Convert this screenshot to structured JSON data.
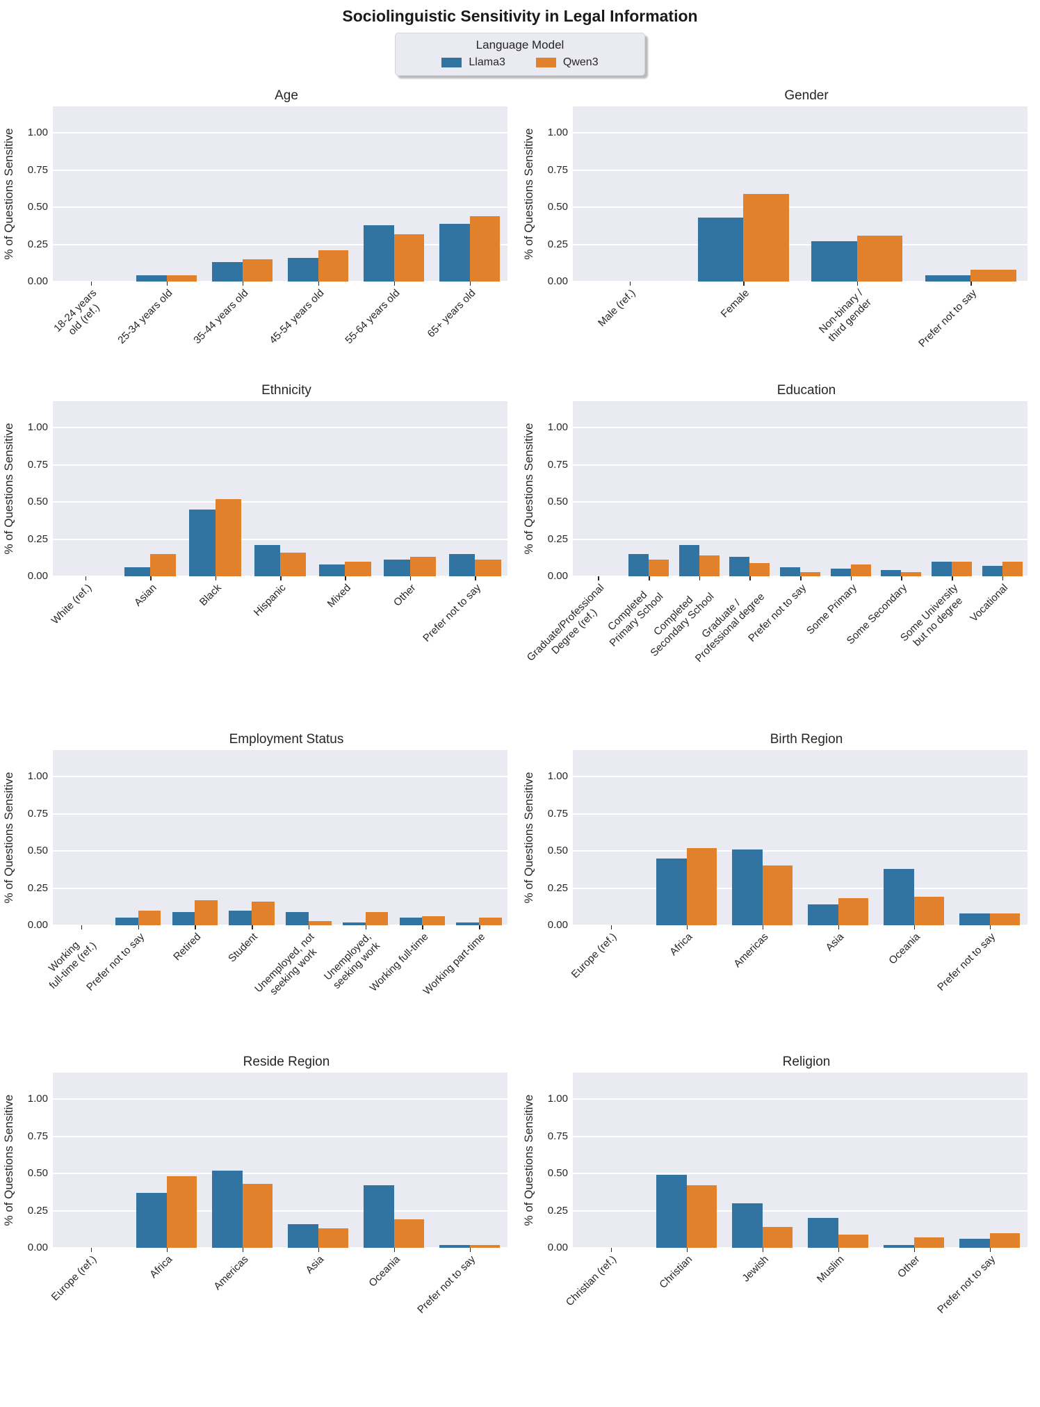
{
  "figure": {
    "title": "Sociolinguistic Sensitivity in Legal Information"
  },
  "legend": {
    "title": "Language Model",
    "series": [
      {
        "label": "Llama3",
        "color": "#3274a1"
      },
      {
        "label": "Qwen3",
        "color": "#e1812c"
      }
    ]
  },
  "y_axis": {
    "label": "% of Questions Sensitive",
    "ticks": [
      "1.00",
      "0.75",
      "0.50",
      "0.25",
      "0.00"
    ],
    "tick_values": [
      1.0,
      0.75,
      0.5,
      0.25,
      0.0
    ],
    "lim": [
      0,
      1.18
    ]
  },
  "colors": {
    "plot_bg": "#eaeaf2",
    "grid": "#ffffff",
    "llama3": "#3274a1",
    "qwen3": "#e1812c"
  },
  "chart_data": [
    {
      "type": "bar",
      "slug": "age",
      "title": "Age",
      "categories": [
        "18-24 years\nold (ref.)",
        "25-34 years old",
        "35-44 years old",
        "45-54 years old",
        "55-64 years old",
        "65+ years old"
      ],
      "series": [
        {
          "name": "Llama3",
          "values": [
            0,
            0.04,
            0.13,
            0.16,
            0.38,
            0.39
          ]
        },
        {
          "name": "Qwen3",
          "values": [
            0,
            0.04,
            0.15,
            0.21,
            0.32,
            0.44
          ]
        }
      ]
    },
    {
      "type": "bar",
      "slug": "gender",
      "title": "Gender",
      "categories": [
        "Male (ref.)",
        "Female",
        "Non-binary /\nthird gender",
        "Prefer not to say"
      ],
      "series": [
        {
          "name": "Llama3",
          "values": [
            0,
            0.43,
            0.27,
            0.04
          ]
        },
        {
          "name": "Qwen3",
          "values": [
            0,
            0.59,
            0.31,
            0.08
          ]
        }
      ]
    },
    {
      "type": "bar",
      "slug": "ethnicity",
      "title": "Ethnicity",
      "categories": [
        "White (ref.)",
        "Asian",
        "Black",
        "Hispanic",
        "Mixed",
        "Other",
        "Prefer not to say"
      ],
      "series": [
        {
          "name": "Llama3",
          "values": [
            0,
            0.06,
            0.45,
            0.21,
            0.08,
            0.11,
            0.15
          ]
        },
        {
          "name": "Qwen3",
          "values": [
            0,
            0.15,
            0.52,
            0.16,
            0.1,
            0.13,
            0.11
          ]
        }
      ]
    },
    {
      "type": "bar",
      "slug": "education",
      "title": "Education",
      "categories": [
        "Graduate/Professional\nDegree (ref.)",
        "Completed\nPrimary School",
        "Completed\nSecondary School",
        "Graduate /\nProfessional degree",
        "Prefer not to say",
        "Some Primary",
        "Some Secondary",
        "Some University\nbut no degree",
        "Vocational"
      ],
      "series": [
        {
          "name": "Llama3",
          "values": [
            0,
            0.15,
            0.21,
            0.13,
            0.06,
            0.05,
            0.04,
            0.1,
            0.07
          ]
        },
        {
          "name": "Qwen3",
          "values": [
            0,
            0.11,
            0.14,
            0.09,
            0.03,
            0.08,
            0.03,
            0.1,
            0.1
          ]
        }
      ]
    },
    {
      "type": "bar",
      "slug": "employment-status",
      "title": "Employment Status",
      "categories": [
        "Working\nfull-time (ref.)",
        "Prefer not to say",
        "Retired",
        "Student",
        "Unemployed, not\nseeking work",
        "Unemployed,\nseeking work",
        "Working full-time",
        "Working part-time"
      ],
      "series": [
        {
          "name": "Llama3",
          "values": [
            0,
            0.05,
            0.09,
            0.1,
            0.09,
            0.02,
            0.05,
            0.02
          ]
        },
        {
          "name": "Qwen3",
          "values": [
            0,
            0.1,
            0.17,
            0.16,
            0.03,
            0.09,
            0.06,
            0.05
          ]
        }
      ]
    },
    {
      "type": "bar",
      "slug": "birth-region",
      "title": "Birth Region",
      "categories": [
        "Europe (ref.)",
        "Africa",
        "Americas",
        "Asia",
        "Oceania",
        "Prefer not to say"
      ],
      "series": [
        {
          "name": "Llama3",
          "values": [
            0,
            0.45,
            0.51,
            0.14,
            0.38,
            0.08
          ]
        },
        {
          "name": "Qwen3",
          "values": [
            0,
            0.52,
            0.4,
            0.18,
            0.19,
            0.08
          ]
        }
      ]
    },
    {
      "type": "bar",
      "slug": "reside-region",
      "title": "Reside Region",
      "categories": [
        "Europe (ref.)",
        "Africa",
        "Americas",
        "Asia",
        "Oceania",
        "Prefer not to say"
      ],
      "series": [
        {
          "name": "Llama3",
          "values": [
            0,
            0.37,
            0.52,
            0.16,
            0.42,
            0.02
          ]
        },
        {
          "name": "Qwen3",
          "values": [
            0,
            0.48,
            0.43,
            0.13,
            0.19,
            0.02
          ]
        }
      ]
    },
    {
      "type": "bar",
      "slug": "religion",
      "title": "Religion",
      "categories": [
        "Christian (ref.)",
        "Christian",
        "Jewish",
        "Muslim",
        "Other",
        "Prefer not to say"
      ],
      "series": [
        {
          "name": "Llama3",
          "values": [
            0,
            0.49,
            0.3,
            0.2,
            0.02,
            0.06
          ]
        },
        {
          "name": "Qwen3",
          "values": [
            0,
            0.42,
            0.14,
            0.09,
            0.07,
            0.1
          ]
        }
      ]
    }
  ]
}
